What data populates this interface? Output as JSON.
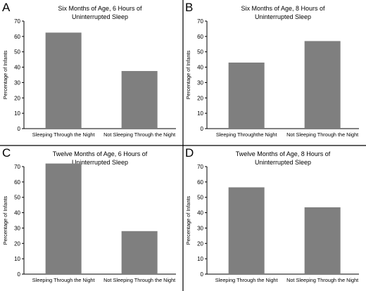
{
  "panels": [
    {
      "letter": "A",
      "title": [
        "Six Months of Age, 6 Hours of",
        "Uninterrupted  Sleep"
      ],
      "ylabel": "Percentage of Infants",
      "ylim": [
        0,
        70
      ],
      "yticks": [
        "0",
        "10",
        "20",
        "30",
        "40",
        "50",
        "60",
        "70"
      ],
      "categories": [
        "Sleeping Through the Night",
        "Not Sleeping Through the Night"
      ],
      "values": [
        62.5,
        37.5
      ]
    },
    {
      "letter": "B",
      "title": [
        "Six Months of Age, 8 Hours of",
        "Uninterrupted Sleep"
      ],
      "ylabel": "Percentage of Infants",
      "ylim": [
        0,
        70
      ],
      "yticks": [
        "0",
        "10",
        "20",
        "30",
        "40",
        "50",
        "60",
        "70"
      ],
      "categories": [
        "Sleeping Throughthe Night",
        "Not Sleeping Through the Night"
      ],
      "values": [
        43,
        57
      ]
    },
    {
      "letter": "C",
      "title": [
        "Twelve Months of Age, 6 Hours of",
        "Uninterrupted Sleep"
      ],
      "ylabel": "Percentage of Infants",
      "ylim": [
        0,
        70
      ],
      "yticks": [
        "0",
        "10",
        "20",
        "30",
        "40",
        "50",
        "60",
        "70"
      ],
      "categories": [
        "Sleeping Through the Night",
        "Not Sleeping Through the Night"
      ],
      "values": [
        72,
        28
      ]
    },
    {
      "letter": "D",
      "title": [
        "Twelve Months of Age, 8 Hours of",
        "Uninterrupted Sleep"
      ],
      "ylabel": "Percentage of Infants",
      "ylim": [
        0,
        70
      ],
      "yticks": [
        "0",
        "10",
        "20",
        "30",
        "40",
        "50",
        "60",
        "70"
      ],
      "categories": [
        "Sleeping Through the Night",
        "Not Sleeping Through the Night"
      ],
      "values": [
        56.5,
        43.5
      ]
    }
  ],
  "chart_data": [
    {
      "type": "bar",
      "title": "Six Months of Age, 6 Hours of Uninterrupted  Sleep",
      "categories": [
        "Sleeping Through the Night",
        "Not Sleeping Through the Night"
      ],
      "values": [
        62.5,
        37.5
      ],
      "xlabel": "",
      "ylabel": "Percentage of Infants",
      "ylim": [
        0,
        70
      ],
      "grid": false
    },
    {
      "type": "bar",
      "title": "Six Months of Age, 8 Hours of Uninterrupted Sleep",
      "categories": [
        "Sleeping Throughthe Night",
        "Not Sleeping Through the Night"
      ],
      "values": [
        43,
        57
      ],
      "xlabel": "",
      "ylabel": "Percentage of Infants",
      "ylim": [
        0,
        70
      ],
      "grid": false
    },
    {
      "type": "bar",
      "title": "Twelve Months of Age, 6 Hours of Uninterrupted Sleep",
      "categories": [
        "Sleeping Through the Night",
        "Not Sleeping Through the Night"
      ],
      "values": [
        72,
        28
      ],
      "xlabel": "",
      "ylabel": "Percentage of Infants",
      "ylim": [
        0,
        70
      ],
      "grid": false
    },
    {
      "type": "bar",
      "title": "Twelve Months of Age, 8 Hours of Uninterrupted Sleep",
      "categories": [
        "Sleeping Through the Night",
        "Not Sleeping Through the Night"
      ],
      "values": [
        56.5,
        43.5
      ],
      "xlabel": "",
      "ylabel": "Percentage of Infants",
      "ylim": [
        0,
        70
      ],
      "grid": false
    }
  ]
}
